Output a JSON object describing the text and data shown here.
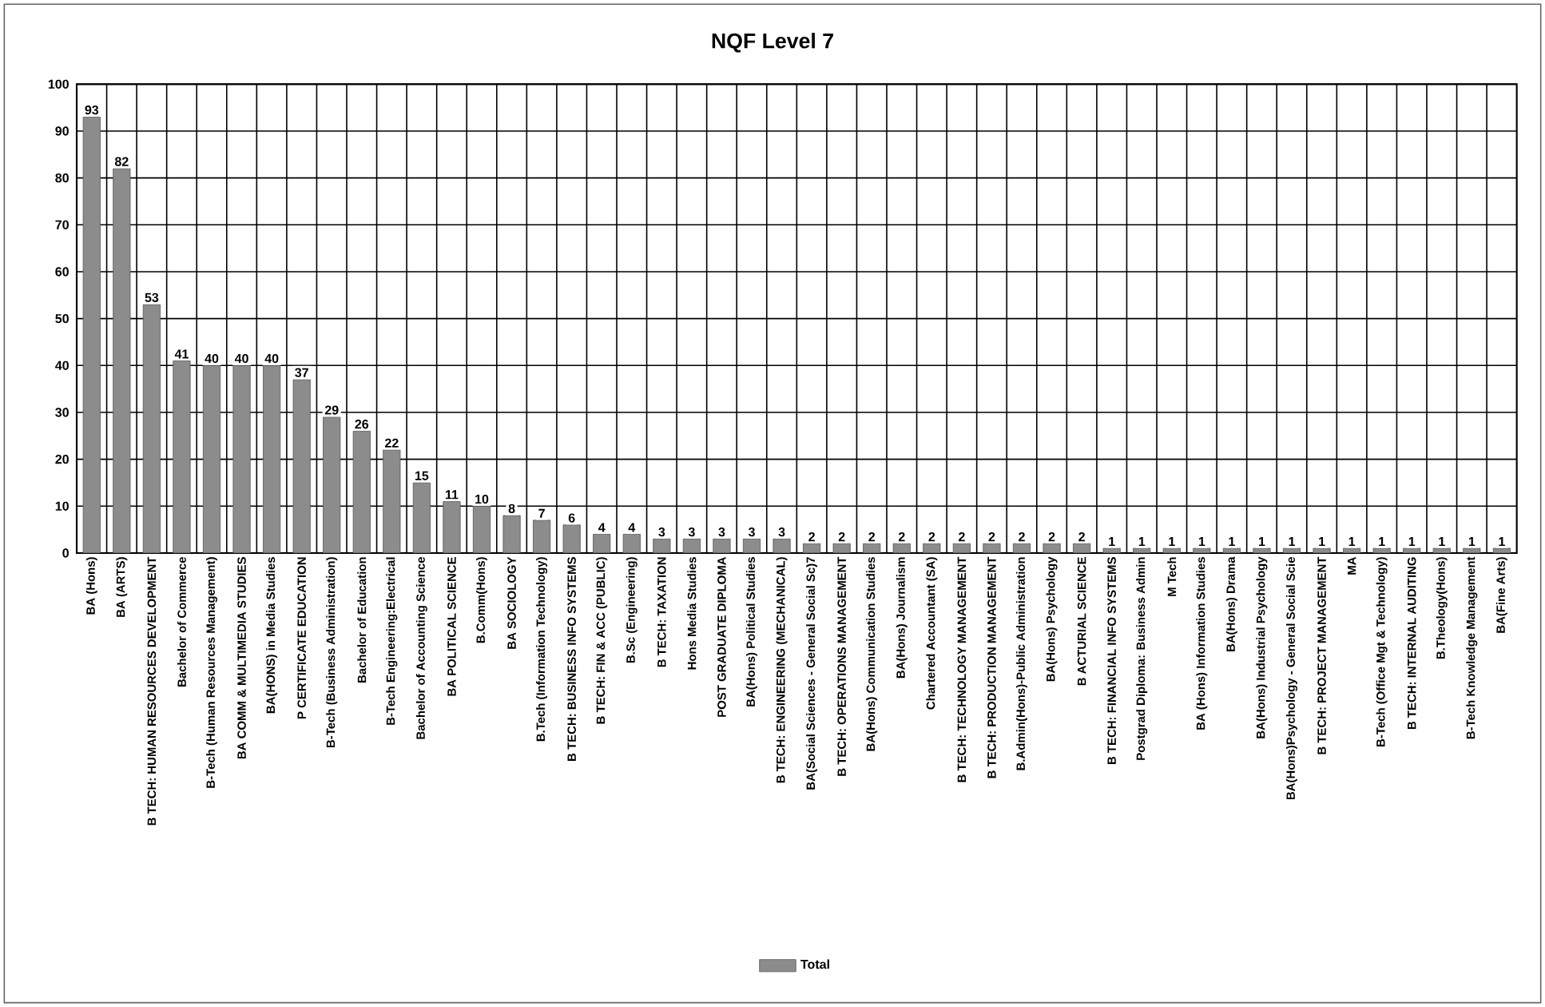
{
  "chart_data": {
    "type": "bar",
    "title": "NQF Level 7",
    "categories": [
      "BA (Hons)",
      "BA (ARTS)",
      "B TECH: HUMAN RESOURCES DEVELOPMENT",
      "Bachelor of Commerce",
      "B-Tech (Human Resources Management)",
      "BA COMM & MULTIMEDIA STUDIES",
      "BA(HONS) in Media Studies",
      "P CERTIFICATE EDUCATION",
      "B-Tech (Business Administration)",
      "Bachelor of Education",
      "B-Tech Engineering:Electrical",
      "Bachelor of Accounting Science",
      "BA POLITICAL SCIENCE",
      "B.Comm(Hons)",
      "BA SOCIOLOGY",
      "B.Tech (Information Technology)",
      "B TECH: BUSINESS INFO SYSTEMS",
      "B TECH: FIN & ACC (PUBLIC)",
      "B.Sc (Engineering)",
      "B TECH: TAXATION",
      "Hons Media Studies",
      "POST GRADUATE DIPLOMA",
      "BA(Hons) Political Studies",
      "B TECH: ENGINEERING (MECHANICAL)",
      "BA(Social Sciences - General Social Sc)7",
      "B TECH: OPERATIONS MANAGEMENT",
      "BA(Hons) Communication Studies",
      "BA(Hons) Journalism",
      "Chartered Accountant (SA)",
      "B TECH: TECHNOLOGY MANAGEMENT",
      "B TECH: PRODUCTION MANAGEMENT",
      "B.Admin(Hons)-Public Administration",
      "BA(Hons) Psychology",
      "B ACTURIAL SCIENCE",
      "B TECH: FINANCIAL INFO SYSTEMS",
      "Postgrad Diploma: Business Admin",
      "M Tech",
      "BA (Hons) Information Studies",
      "BA(Hons) Drama",
      "BA(Hons) Industrial Psychology",
      "BA(Hons)Psychology - General Social Scie",
      "B TECH: PROJECT MANAGEMENT",
      "MA",
      "B-Tech (Office Mgt & Technology)",
      "B TECH: INTERNAL AUDITING",
      "B.Theology(Hons)",
      "B-Tech Knowledge Management",
      "BA(Fine Arts)"
    ],
    "series": [
      {
        "name": "Total",
        "color": "#8c8c8c",
        "values": [
          93,
          82,
          53,
          41,
          40,
          40,
          40,
          37,
          29,
          26,
          22,
          15,
          11,
          10,
          8,
          7,
          6,
          4,
          4,
          3,
          3,
          3,
          3,
          3,
          2,
          2,
          2,
          2,
          2,
          2,
          2,
          2,
          2,
          2,
          1,
          1,
          1,
          1,
          1,
          1,
          1,
          1,
          1,
          1,
          1,
          1,
          1,
          1
        ]
      }
    ],
    "ylim": [
      0,
      100
    ],
    "yticks": [
      0,
      10,
      20,
      30,
      40,
      50,
      60,
      70,
      80,
      90,
      100
    ],
    "grid": true,
    "legend": "bottom",
    "data_labels": true
  }
}
